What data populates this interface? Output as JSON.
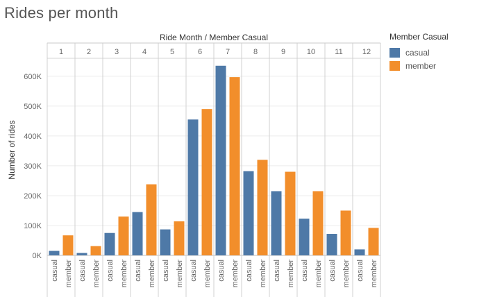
{
  "title": "Rides per month",
  "legend": {
    "title": "Member Casual",
    "items": [
      {
        "label": "casual",
        "color": "#4e79a7"
      },
      {
        "label": "member",
        "color": "#f28e2b"
      }
    ]
  },
  "chart_data": {
    "type": "bar",
    "title": "Rides per month",
    "column_header": "Ride Month  /  Member Casual",
    "ylabel": "Number of rides",
    "ylim": [
      0,
      660000
    ],
    "yticks": [
      0,
      100000,
      200000,
      300000,
      400000,
      500000,
      600000
    ],
    "ytick_labels": [
      "0K",
      "100K",
      "200K",
      "300K",
      "400K",
      "500K",
      "600K"
    ],
    "grid": true,
    "legend_position": "right",
    "categories": [
      "1",
      "2",
      "3",
      "4",
      "5",
      "6",
      "7",
      "8",
      "9",
      "10",
      "11",
      "12"
    ],
    "subcategories": [
      "casual",
      "member"
    ],
    "series": [
      {
        "name": "casual",
        "color": "#4e79a7",
        "values": [
          15000,
          8000,
          75000,
          145000,
          87000,
          455000,
          635000,
          282000,
          215000,
          123000,
          72000,
          20000
        ]
      },
      {
        "name": "member",
        "color": "#f28e2b",
        "values": [
          67000,
          31000,
          130000,
          238000,
          114000,
          490000,
          597000,
          320000,
          280000,
          215000,
          150000,
          92000
        ]
      }
    ]
  }
}
